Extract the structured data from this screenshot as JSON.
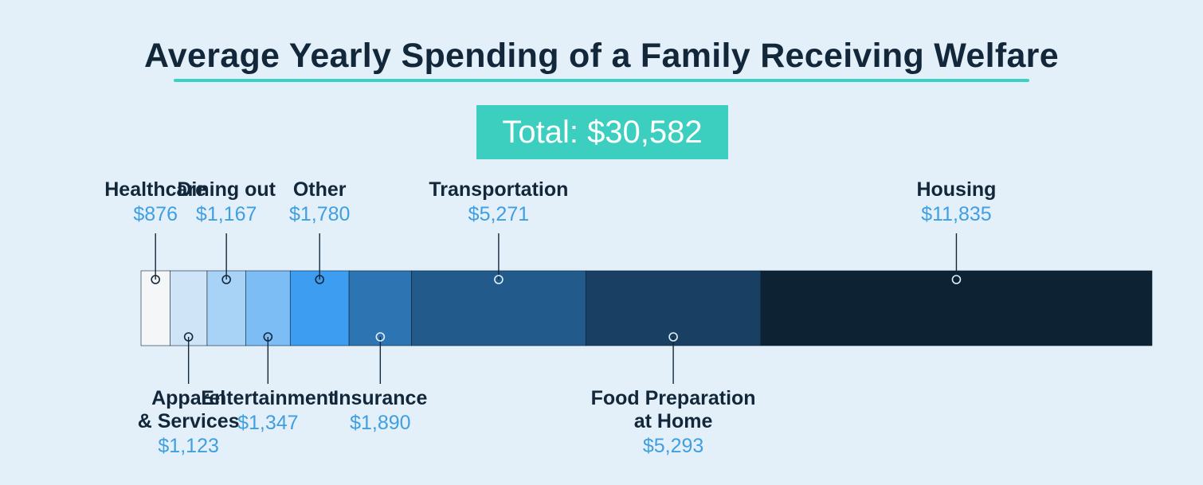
{
  "chart_data": {
    "type": "bar",
    "orientation": "horizontal-stacked",
    "title": "Average Yearly Spending of a Family Receiving Welfare",
    "total_text": "Total: $30,582",
    "total": 30582,
    "categories": [
      "Healthcare",
      "Apparel\n& Services",
      "Dining out",
      "Entertainment",
      "Other",
      "Insurance",
      "Transportation",
      "Food Preparation\nat Home",
      "Housing"
    ],
    "values": [
      876,
      1123,
      1167,
      1347,
      1780,
      1890,
      5271,
      5293,
      11835
    ],
    "value_labels": [
      "$876",
      "$1,123",
      "$1,167",
      "$1,347",
      "$1,780",
      "$1,890",
      "$5,271",
      "$5,293",
      "$11,835"
    ],
    "label_positions": [
      "top",
      "bottom",
      "top",
      "bottom",
      "top",
      "bottom",
      "top",
      "bottom",
      "top"
    ],
    "colors": [
      "#f4f6f8",
      "#cfe4f7",
      "#a9d2f7",
      "#7dbdf6",
      "#3d9df0",
      "#2d74b3",
      "#225a8c",
      "#193f62",
      "#0d2233"
    ]
  }
}
